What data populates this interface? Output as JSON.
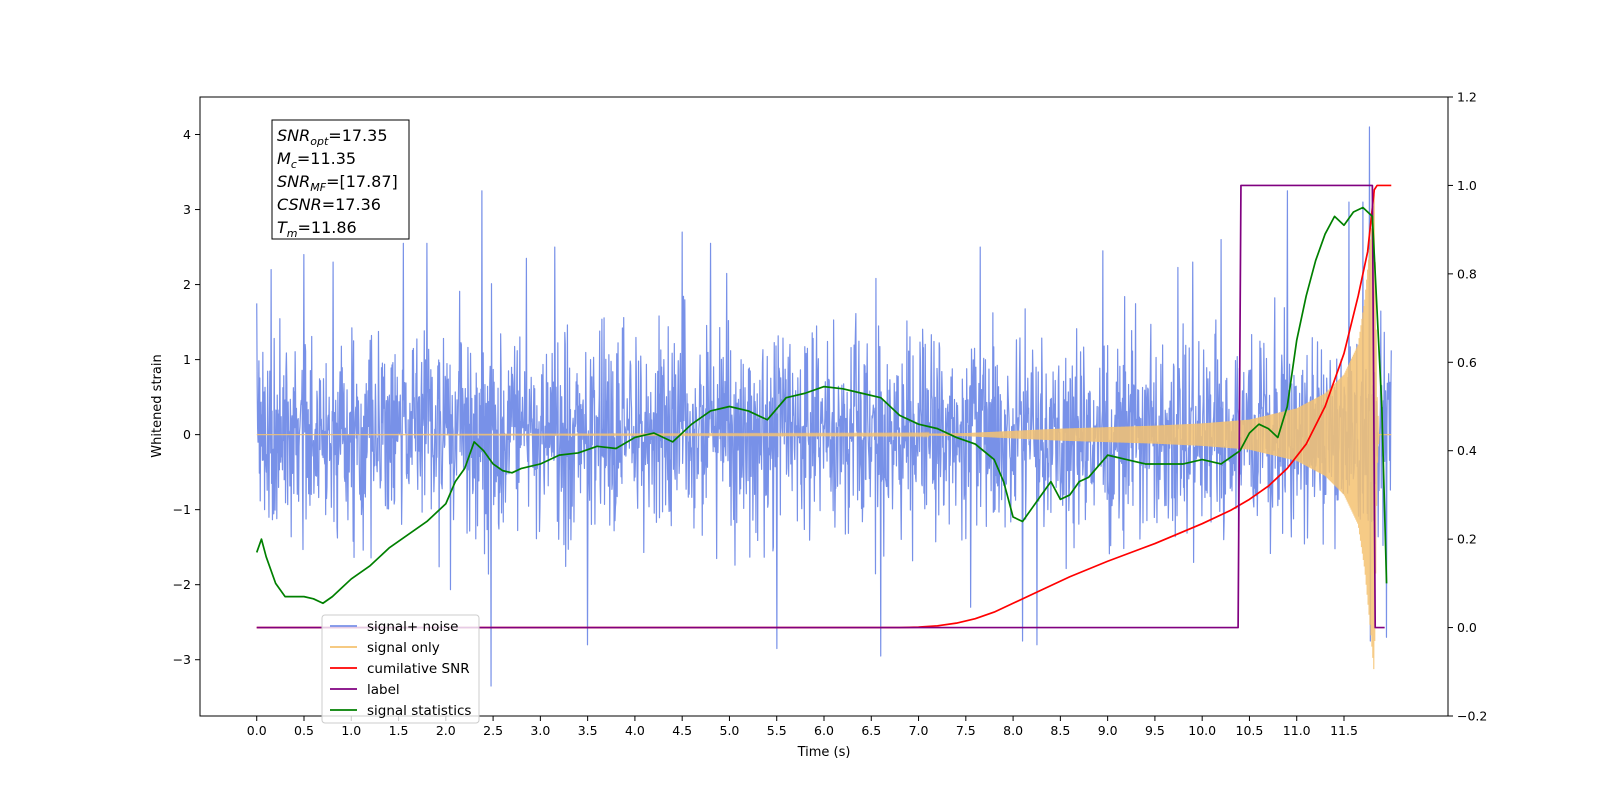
{
  "chart_data": {
    "type": "line",
    "xlabel": "Time (s)",
    "ylabel": "Whitened strain",
    "xlim": [
      -0.6,
      12.6
    ],
    "ylim": [
      -3.75,
      4.5
    ],
    "y2lim": [
      -0.2,
      1.2
    ],
    "x_ticks": [
      "0.0",
      "0.5",
      "1.0",
      "1.5",
      "2.0",
      "2.5",
      "3.0",
      "3.5",
      "4.0",
      "4.5",
      "5.0",
      "5.5",
      "6.0",
      "6.5",
      "7.0",
      "7.5",
      "8.0",
      "8.5",
      "9.0",
      "9.5",
      "10.0",
      "10.5",
      "11.0",
      "11.5"
    ],
    "y_ticks": [
      "4",
      "3",
      "2",
      "1",
      "0",
      "−1",
      "−2",
      "−3"
    ],
    "y2_ticks": [
      "1.2",
      "1.0",
      "0.8",
      "0.6",
      "0.4",
      "0.2",
      "0.0",
      "−0.2"
    ],
    "grid": false,
    "legend_position": "lower-left",
    "legend": [
      {
        "label": "signal+ noise",
        "color": "#7891e8"
      },
      {
        "label": "signal only",
        "color": "#f5c271"
      },
      {
        "label": "cumilative SNR",
        "color": "#ff0000"
      },
      {
        "label": "label",
        "color": "#800080"
      },
      {
        "label": "signal statistics",
        "color": "#008000"
      }
    ],
    "annotation": {
      "lines": [
        {
          "main": "SNR",
          "sub": "opt",
          "value": "=17.35"
        },
        {
          "main": "M",
          "sub": "c",
          "value": "=11.35"
        },
        {
          "main": "SNR",
          "sub": "MF",
          "value": "=[17.87]"
        },
        {
          "main": "CSNR",
          "sub": "",
          "value": "=17.36"
        },
        {
          "main": "T",
          "sub": "m",
          "value": "=11.86"
        }
      ]
    },
    "series": [
      {
        "name": "signal+ noise",
        "axis": "left",
        "color": "#7891e8",
        "kind": "noise",
        "x_range": [
          0.0,
          12.0
        ],
        "envelope_sigma": 0.9,
        "peaks": [
          [
            0.0,
            1.75
          ],
          [
            0.15,
            2.2
          ],
          [
            0.5,
            2.4
          ],
          [
            1.55,
            2.55
          ],
          [
            1.8,
            2.55
          ],
          [
            2.38,
            3.25
          ],
          [
            2.48,
            -3.35
          ],
          [
            2.85,
            2.35
          ],
          [
            3.15,
            2.5
          ],
          [
            3.5,
            -2.8
          ],
          [
            4.5,
            2.7
          ],
          [
            4.8,
            2.55
          ],
          [
            5.5,
            -2.85
          ],
          [
            6.6,
            -2.95
          ],
          [
            7.65,
            2.5
          ],
          [
            8.1,
            -2.75
          ],
          [
            8.25,
            -2.8
          ],
          [
            8.95,
            2.45
          ],
          [
            9.9,
            2.3
          ],
          [
            10.2,
            2.6
          ],
          [
            10.9,
            3.25
          ],
          [
            11.55,
            3.1
          ],
          [
            11.7,
            3.1
          ],
          [
            11.77,
            4.1
          ],
          [
            11.78,
            -2.75
          ],
          [
            11.95,
            -2.7
          ]
        ]
      },
      {
        "name": "signal only",
        "axis": "left",
        "color": "#f5c271",
        "kind": "chirp",
        "x_range": [
          0.0,
          12.0
        ],
        "envelope": [
          [
            0.0,
            0.0
          ],
          [
            7.0,
            0.01
          ],
          [
            7.5,
            0.02
          ],
          [
            8.0,
            0.05
          ],
          [
            8.5,
            0.08
          ],
          [
            9.0,
            0.1
          ],
          [
            9.5,
            0.12
          ],
          [
            10.0,
            0.15
          ],
          [
            10.5,
            0.2
          ],
          [
            11.0,
            0.35
          ],
          [
            11.3,
            0.55
          ],
          [
            11.5,
            0.8
          ],
          [
            11.65,
            1.2
          ],
          [
            11.72,
            1.8
          ],
          [
            11.78,
            2.6
          ],
          [
            11.82,
            3.2
          ],
          [
            11.85,
            0.5
          ],
          [
            11.87,
            0.0
          ],
          [
            12.0,
            0.0
          ]
        ]
      },
      {
        "name": "cumilative SNR",
        "axis": "right",
        "color": "#ff0000",
        "x": [
          0.0,
          6.8,
          7.0,
          7.2,
          7.4,
          7.6,
          7.8,
          8.0,
          8.3,
          8.6,
          9.0,
          9.5,
          10.0,
          10.3,
          10.5,
          10.7,
          10.9,
          11.1,
          11.3,
          11.5,
          11.65,
          11.75,
          11.8,
          11.82,
          11.85,
          11.88,
          11.95,
          12.0
        ],
        "values": [
          0.0,
          0.0,
          0.001,
          0.004,
          0.01,
          0.02,
          0.035,
          0.055,
          0.085,
          0.115,
          0.15,
          0.19,
          0.235,
          0.265,
          0.29,
          0.32,
          0.36,
          0.415,
          0.5,
          0.62,
          0.75,
          0.85,
          0.95,
          0.99,
          1.0,
          1.0,
          1.0,
          1.0
        ]
      },
      {
        "name": "label",
        "axis": "right",
        "color": "#800080",
        "x": [
          0.0,
          10.38,
          10.41,
          11.8,
          11.83,
          11.93
        ],
        "values": [
          0.0,
          0.0,
          1.0,
          1.0,
          0.0,
          0.0
        ]
      },
      {
        "name": "signal statistics",
        "axis": "right",
        "color": "#008000",
        "x": [
          0.0,
          0.05,
          0.1,
          0.2,
          0.3,
          0.4,
          0.5,
          0.6,
          0.7,
          0.8,
          0.9,
          1.0,
          1.2,
          1.4,
          1.6,
          1.8,
          1.9,
          2.0,
          2.1,
          2.2,
          2.3,
          2.4,
          2.5,
          2.6,
          2.7,
          2.8,
          3.0,
          3.2,
          3.4,
          3.6,
          3.8,
          4.0,
          4.2,
          4.4,
          4.6,
          4.8,
          5.0,
          5.2,
          5.4,
          5.6,
          5.8,
          6.0,
          6.2,
          6.4,
          6.6,
          6.8,
          7.0,
          7.2,
          7.4,
          7.6,
          7.8,
          7.9,
          8.0,
          8.1,
          8.2,
          8.3,
          8.4,
          8.5,
          8.6,
          8.7,
          8.8,
          9.0,
          9.2,
          9.4,
          9.6,
          9.8,
          10.0,
          10.2,
          10.4,
          10.5,
          10.6,
          10.7,
          10.8,
          10.9,
          11.0,
          11.1,
          11.2,
          11.3,
          11.4,
          11.5,
          11.6,
          11.7,
          11.8,
          11.9,
          11.95
        ],
        "values": [
          0.17,
          0.2,
          0.16,
          0.1,
          0.07,
          0.07,
          0.07,
          0.065,
          0.055,
          0.07,
          0.09,
          0.11,
          0.14,
          0.18,
          0.21,
          0.24,
          0.26,
          0.28,
          0.33,
          0.36,
          0.42,
          0.4,
          0.37,
          0.355,
          0.35,
          0.36,
          0.37,
          0.39,
          0.395,
          0.41,
          0.405,
          0.43,
          0.44,
          0.42,
          0.46,
          0.49,
          0.5,
          0.49,
          0.47,
          0.52,
          0.53,
          0.545,
          0.54,
          0.53,
          0.52,
          0.48,
          0.46,
          0.45,
          0.43,
          0.415,
          0.38,
          0.33,
          0.25,
          0.24,
          0.27,
          0.3,
          0.33,
          0.29,
          0.3,
          0.33,
          0.34,
          0.39,
          0.38,
          0.37,
          0.37,
          0.37,
          0.38,
          0.37,
          0.4,
          0.44,
          0.46,
          0.45,
          0.43,
          0.5,
          0.65,
          0.75,
          0.83,
          0.89,
          0.93,
          0.91,
          0.94,
          0.95,
          0.93,
          0.5,
          0.1
        ]
      }
    ]
  }
}
